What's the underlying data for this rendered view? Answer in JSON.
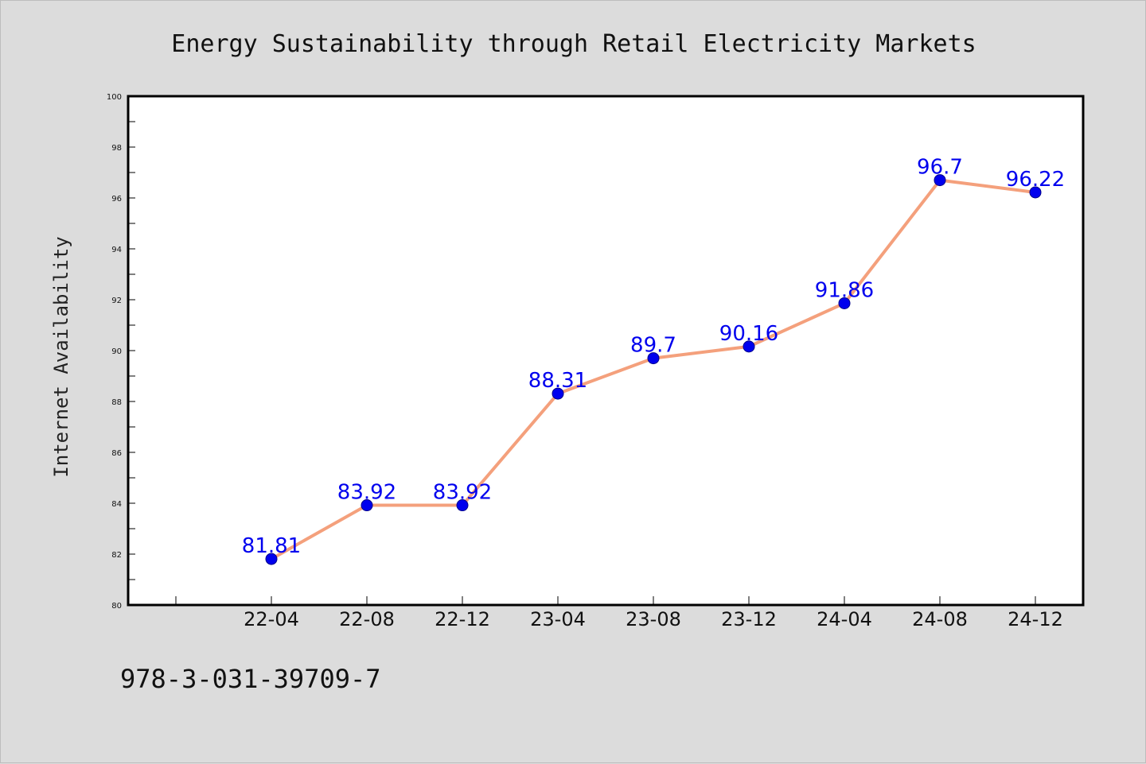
{
  "chart_data": {
    "type": "line",
    "title": "Energy Sustainability through Retail Electricity Markets",
    "xlabel": "",
    "ylabel": "Internet Availability",
    "categories": [
      "22-04",
      "22-08",
      "22-12",
      "23-04",
      "23-08",
      "23-12",
      "24-04",
      "24-08",
      "24-12"
    ],
    "series": [
      {
        "values": [
          81.81,
          83.92,
          83.92,
          88.31,
          89.7,
          90.16,
          91.86,
          96.7,
          96.22
        ],
        "labels": [
          "81.81",
          "83.92",
          "83.92",
          "88.31",
          "89.7",
          "90.16",
          "91.86",
          "96.7",
          "96.22"
        ],
        "line_color": "#f4a07c",
        "marker_color": "#0000ee",
        "label_color": "#0000ee"
      }
    ],
    "ylim": [
      80,
      100
    ],
    "yticks": [
      "80",
      "82",
      "84",
      "86",
      "88",
      "90",
      "92",
      "94",
      "96",
      "98",
      "100"
    ],
    "grid": false,
    "legend": "none"
  },
  "footnote": "978-3-031-39709-7"
}
